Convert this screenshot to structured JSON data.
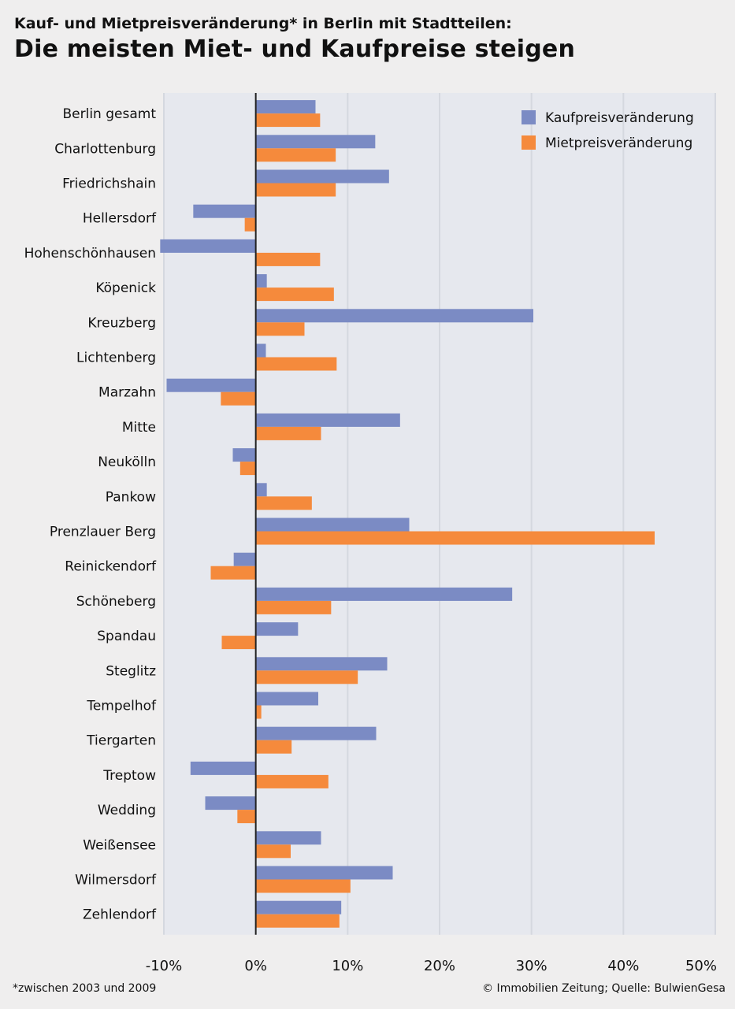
{
  "subtitle": "Kauf- und Mietpreisveränderung* in Berlin mit Stadtteilen:",
  "title": "Die meisten Miet- und Kaufpreise steigen",
  "footnote": "*zwischen 2003 und 2009",
  "credit": "© Immobilien Zeitung; Quelle: BulwienGesa",
  "colors": {
    "kauf": "#7b8bc4",
    "miet": "#f58a3c",
    "background": "#efeeee",
    "gridline": "#d5d8df",
    "zeroline": "#222222"
  },
  "chart_data": {
    "type": "bar",
    "orientation": "horizontal",
    "categories": [
      "Berlin gesamt",
      "Charlottenburg",
      "Friedrichshain",
      "Hellersdorf",
      "Hohenschönhausen",
      "Köpenick",
      "Kreuzberg",
      "Lichtenberg",
      "Marzahn",
      "Mitte",
      "Neukölln",
      "Pankow",
      "Prenzlauer Berg",
      "Reinickendorf",
      "Schöneberg",
      "Spandau",
      "Steglitz",
      "Tempelhof",
      "Tiergarten",
      "Treptow",
      "Wedding",
      "Weißensee",
      "Wilmersdorf",
      "Zehlendorf"
    ],
    "series": [
      {
        "name": "Kaufpreisveränderung",
        "values": [
          6.5,
          13,
          14.5,
          -6.8,
          -10.4,
          1.2,
          30.2,
          1.1,
          -9.7,
          15.7,
          -2.5,
          1.2,
          16.7,
          -2.4,
          27.9,
          4.6,
          14.3,
          6.8,
          13.1,
          -7.1,
          -5.5,
          7.1,
          14.9,
          9.3
        ]
      },
      {
        "name": "Mietpreisveränderung",
        "values": [
          7,
          8.7,
          8.7,
          -1.2,
          7,
          8.5,
          5.3,
          8.8,
          -3.8,
          7.1,
          -1.7,
          6.1,
          43.4,
          -4.9,
          8.2,
          -3.7,
          11.1,
          0.6,
          3.9,
          7.9,
          -2,
          3.8,
          10.3,
          9.1
        ]
      }
    ],
    "xlim": [
      -10,
      50
    ],
    "ticks": [
      -10,
      0,
      10,
      20,
      30,
      40,
      50
    ],
    "tick_labels": [
      "-10%",
      "0%",
      "10%",
      "20%",
      "30%",
      "40%",
      "50%"
    ],
    "legend_position": "top-right",
    "grid": true
  }
}
